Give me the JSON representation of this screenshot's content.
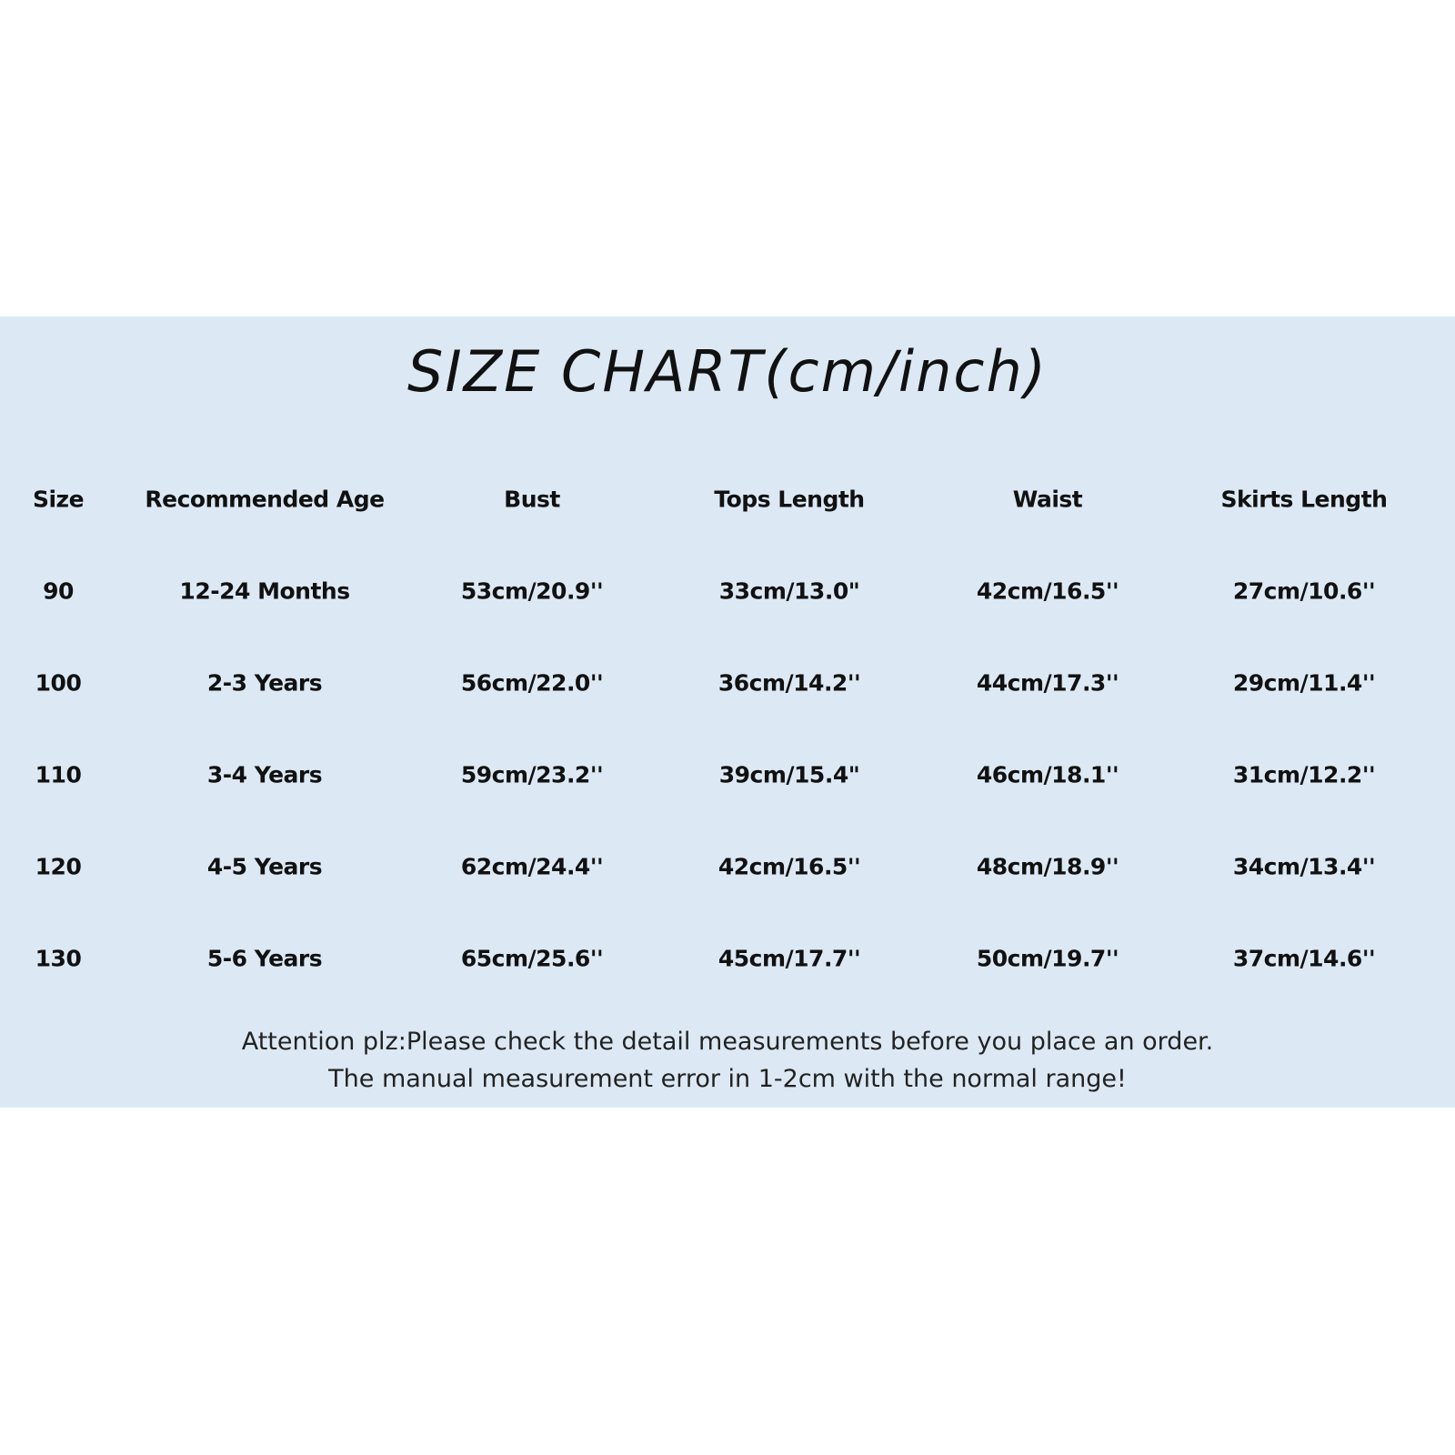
{
  "title": "SIZE CHART(cm/inch)",
  "colors": {
    "band_background": "#dce9f5",
    "text": "#111111"
  },
  "table": {
    "headers": [
      "Size",
      "Recommended Age",
      "Bust",
      "Tops Length",
      "Waist",
      "Skirts Length"
    ],
    "rows": [
      [
        "90",
        "12-24 Months",
        "53cm/20.9''",
        "33cm/13.0\"",
        "42cm/16.5''",
        "27cm/10.6''"
      ],
      [
        "100",
        "2-3 Years",
        "56cm/22.0''",
        "36cm/14.2''",
        "44cm/17.3''",
        "29cm/11.4''"
      ],
      [
        "110",
        "3-4 Years",
        "59cm/23.2''",
        "39cm/15.4\"",
        "46cm/18.1''",
        "31cm/12.2''"
      ],
      [
        "120",
        "4-5 Years",
        "62cm/24.4''",
        "42cm/16.5''",
        "48cm/18.9''",
        "34cm/13.4''"
      ],
      [
        "130",
        "5-6 Years",
        "65cm/25.6''",
        "45cm/17.7''",
        "50cm/19.7''",
        "37cm/14.6''"
      ]
    ]
  },
  "notes": [
    "Attention plz:Please check the detail measurements before you place an order.",
    "The manual measurement error in 1-2cm with the normal range!"
  ]
}
